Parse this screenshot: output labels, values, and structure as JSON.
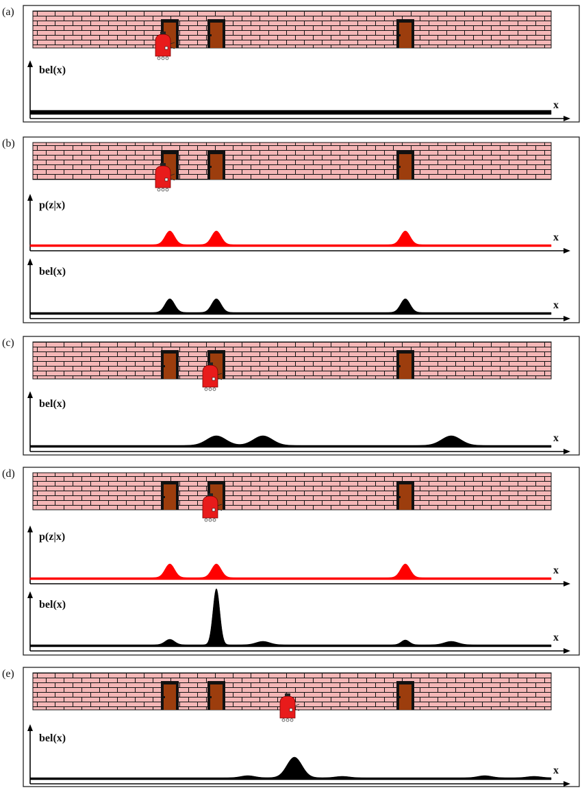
{
  "colors": {
    "brick": "#f5b7b7",
    "mortar": "#111111",
    "door_fill": "#9c3d0d",
    "door_frame": "#111111",
    "robot": "#e81b1b",
    "sensor_curve": "#ff0000",
    "belief_curve": "#000000",
    "panel_border": "#222222"
  },
  "labels": {
    "x_axis": "x",
    "belief": "bel(x)",
    "measurement": "p(z|x)"
  },
  "panels": [
    {
      "id": "a",
      "label": "(a)",
      "robot_position": 238,
      "plots": [
        {
          "kind": "belief",
          "peaks": [],
          "baseline": 6
        }
      ]
    },
    {
      "id": "b",
      "label": "(b)",
      "robot_position": 238,
      "plots": [
        {
          "kind": "measurement",
          "peaks": [
            [
              248,
              20,
              7
            ],
            [
              316,
              20,
              7
            ],
            [
              592,
              20,
              7
            ]
          ],
          "baseline": 3
        },
        {
          "kind": "belief",
          "peaks": [
            [
              248,
              20,
              7
            ],
            [
              316,
              20,
              7
            ],
            [
              592,
              20,
              7
            ]
          ],
          "baseline": 3
        }
      ]
    },
    {
      "id": "c",
      "label": "(c)",
      "robot_position": 307,
      "plots": [
        {
          "kind": "belief",
          "peaks": [
            [
              316,
              14,
              14
            ],
            [
              384,
              14,
              14
            ],
            [
              659,
              14,
              14
            ]
          ],
          "baseline": 3
        }
      ]
    },
    {
      "id": "d",
      "label": "(d)",
      "robot_position": 307,
      "plots": [
        {
          "kind": "measurement",
          "peaks": [
            [
              248,
              20,
              7
            ],
            [
              316,
              20,
              7
            ],
            [
              592,
              20,
              7
            ]
          ],
          "baseline": 3
        },
        {
          "kind": "belief",
          "peaks": [
            [
              248,
              8,
              7
            ],
            [
              316,
              82,
              5
            ],
            [
              384,
              5,
              10
            ],
            [
              592,
              7,
              6
            ],
            [
              659,
              5,
              10
            ]
          ],
          "baseline": 3
        }
      ]
    },
    {
      "id": "e",
      "label": "(e)",
      "robot_position": 420,
      "plots": [
        {
          "kind": "belief",
          "peaks": [
            [
              430,
              30,
              11
            ],
            [
              362,
              3,
              10
            ],
            [
              500,
              2,
              10
            ],
            [
              708,
              3,
              10
            ],
            [
              780,
              2,
              10
            ]
          ],
          "baseline": 3
        }
      ]
    }
  ],
  "doors": [
    248,
    316,
    592
  ]
}
